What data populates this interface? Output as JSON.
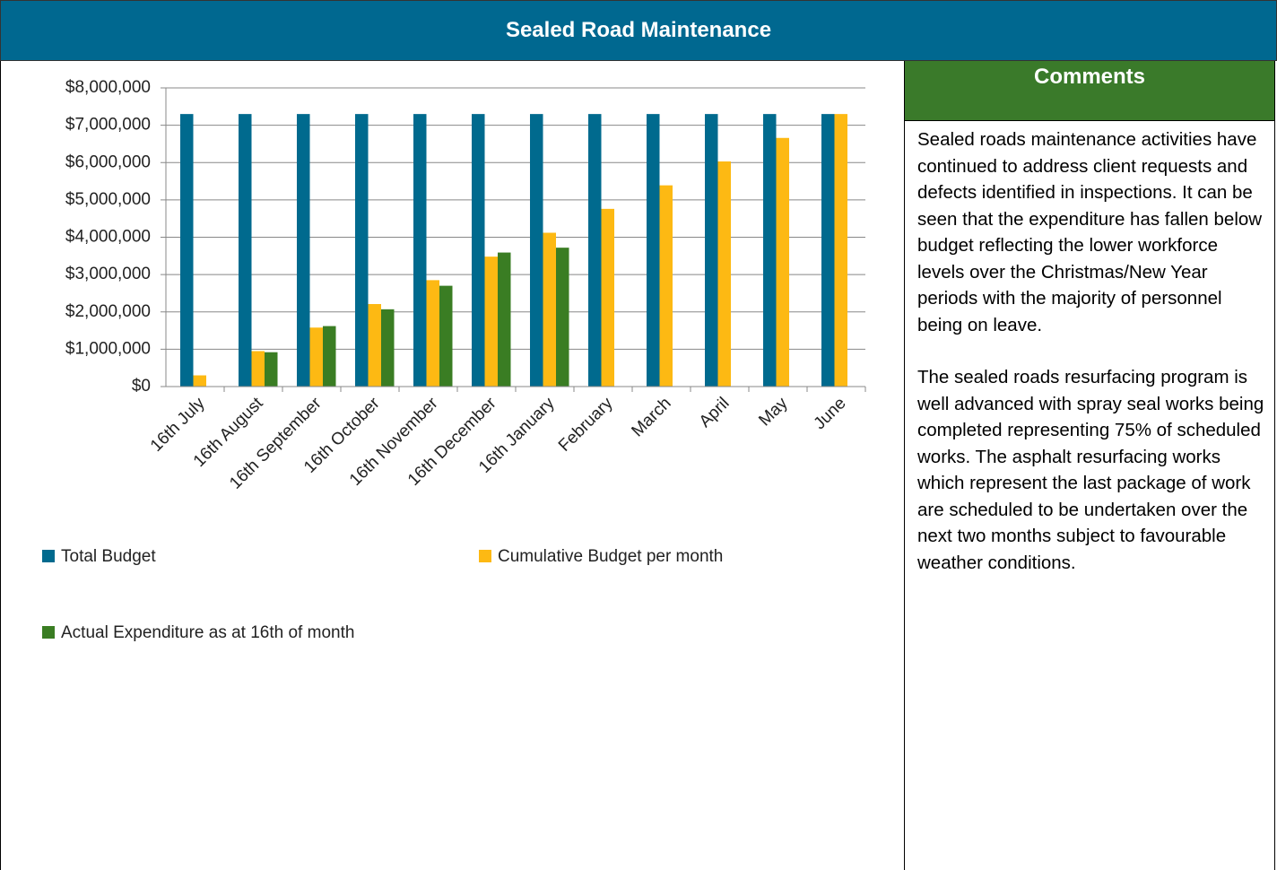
{
  "chart_data": {
    "type": "bar",
    "title": "Sealed Road Maintenance",
    "categories": [
      "16th July",
      "16th August",
      "16th September",
      "16th October",
      "16th November",
      "16th December",
      "16th January",
      "February",
      "March",
      "April",
      "May",
      "June"
    ],
    "series": [
      {
        "name": "Total Budget",
        "color": "#006a8e",
        "values": [
          7300000,
          7300000,
          7300000,
          7300000,
          7300000,
          7300000,
          7300000,
          7300000,
          7300000,
          7300000,
          7300000,
          7300000
        ]
      },
      {
        "name": "Cumulative Budget per month",
        "color": "#fdb913",
        "values": [
          300000,
          950000,
          1580000,
          2210000,
          2850000,
          3480000,
          4120000,
          4760000,
          5390000,
          6030000,
          6660000,
          7300000
        ]
      },
      {
        "name": "Actual Expenditure as at 16th of month",
        "color": "#3a7d23",
        "values": [
          null,
          920000,
          1620000,
          2070000,
          2700000,
          3590000,
          3720000,
          null,
          null,
          null,
          null,
          null
        ]
      }
    ],
    "ylim": [
      0,
      8000000
    ],
    "yticks": [
      {
        "value": 0,
        "label": "$0"
      },
      {
        "value": 1000000,
        "label": "$1,000,000"
      },
      {
        "value": 2000000,
        "label": "$2,000,000"
      },
      {
        "value": 3000000,
        "label": "$3,000,000"
      },
      {
        "value": 4000000,
        "label": "$4,000,000"
      },
      {
        "value": 5000000,
        "label": "$5,000,000"
      },
      {
        "value": 6000000,
        "label": "$6,000,000"
      },
      {
        "value": 7000000,
        "label": "$7,000,000"
      },
      {
        "value": 8000000,
        "label": "$8,000,000"
      }
    ],
    "grid": true
  },
  "comments": {
    "title": "Comments",
    "paragraphs": [
      "Sealed roads maintenance activities have continued to address client requests and defects identified in inspections. It can be seen that the expenditure has fallen below budget reflecting the lower workforce levels over the Christmas/New Year periods with the majority of personnel being on leave.",
      "The sealed roads resurfacing program is well advanced with spray seal works being completed representing 75% of scheduled works. The asphalt resurfacing works which represent the last package of work are scheduled to be undertaken over the next two months subject to favourable weather conditions."
    ]
  }
}
